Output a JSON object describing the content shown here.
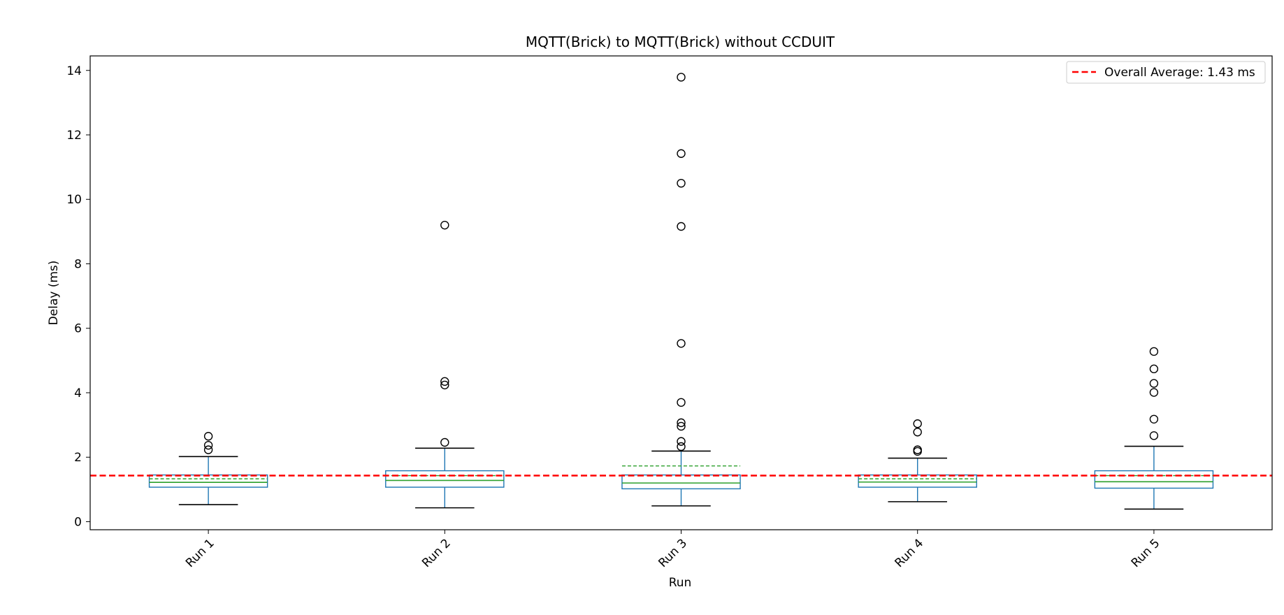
{
  "chart_data": {
    "type": "box",
    "title": "MQTT(Brick) to MQTT(Brick) without CCDUIT",
    "xlabel": "Run",
    "ylabel": "Delay (ms)",
    "ylim": [
      -0.25,
      14.45
    ],
    "yticks": [
      0,
      2,
      4,
      6,
      8,
      10,
      12,
      14
    ],
    "grid": false,
    "legend_position": "top-right",
    "categories": [
      "Run 1",
      "Run 2",
      "Run 3",
      "Run 4",
      "Run 5"
    ],
    "boxes": [
      {
        "q1": 1.07,
        "median": 1.22,
        "q3": 1.45,
        "mean": 1.33,
        "whisker_low": 0.53,
        "whisker_high": 2.02,
        "outliers": [
          2.23,
          2.37,
          2.65
        ]
      },
      {
        "q1": 1.07,
        "median": 1.28,
        "q3": 1.58,
        "mean": 1.43,
        "whisker_low": 0.43,
        "whisker_high": 2.28,
        "outliers": [
          2.46,
          4.24,
          4.35,
          9.2
        ]
      },
      {
        "q1": 1.02,
        "median": 1.2,
        "q3": 1.45,
        "mean": 1.73,
        "whisker_low": 0.49,
        "whisker_high": 2.19,
        "outliers": [
          2.33,
          2.49,
          2.96,
          3.07,
          3.7,
          5.53,
          9.16,
          10.5,
          11.42,
          13.79
        ]
      },
      {
        "q1": 1.07,
        "median": 1.23,
        "q3": 1.45,
        "mean": 1.33,
        "whisker_low": 0.62,
        "whisker_high": 1.97,
        "outliers": [
          2.18,
          2.23,
          2.78,
          3.04
        ]
      },
      {
        "q1": 1.04,
        "median": 1.24,
        "q3": 1.58,
        "mean": 1.43,
        "whisker_low": 0.39,
        "whisker_high": 2.34,
        "outliers": [
          2.67,
          3.18,
          4.01,
          4.29,
          4.74,
          5.28
        ]
      }
    ],
    "reference_line": {
      "value": 1.43,
      "label": "Overall Average: 1.43 ms"
    },
    "colors": {
      "box": "#1f77b4",
      "median": "#2ca02c",
      "mean": "#2ca02c",
      "whisker_cap": "#000000",
      "outlier": "#000000",
      "reference": "#ff0000"
    }
  }
}
